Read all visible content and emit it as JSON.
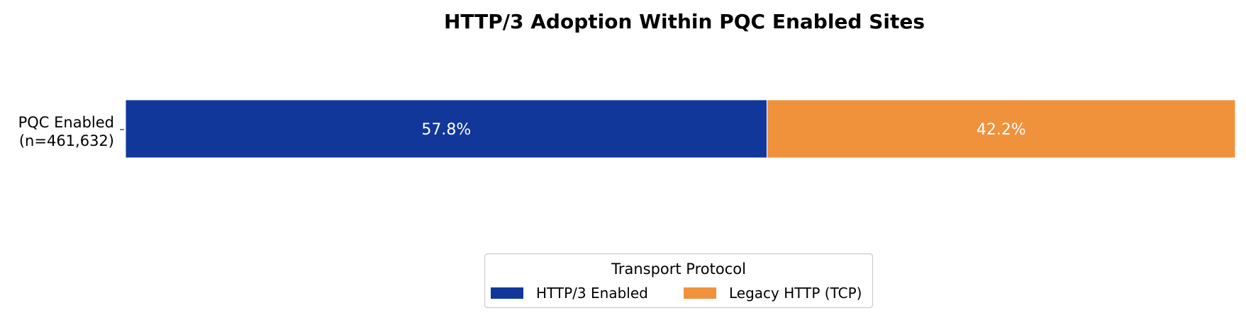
{
  "chart_data": {
    "type": "bar",
    "orientation": "horizontal",
    "stacked": true,
    "normalized_percent": true,
    "title": "HTTP/3 Adoption Within PQC Enabled Sites",
    "categories": [
      {
        "label_line1": "PQC Enabled",
        "label_line2": "(n=461,632)"
      }
    ],
    "series": [
      {
        "name": "HTTP/3 Enabled",
        "values": [
          57.8
        ],
        "labels": [
          "57.8%"
        ],
        "color": "#12379B",
        "label_color": "#ffffff"
      },
      {
        "name": "Legacy HTTP (TCP)",
        "values": [
          42.2
        ],
        "labels": [
          "42.2%"
        ],
        "color": "#F0923C",
        "label_color": "#ffffff"
      }
    ],
    "xlim": [
      0,
      100
    ],
    "grid": false,
    "x_axis_visible": false,
    "legend": {
      "title": "Transport Protocol",
      "placement": "bottom-center"
    }
  }
}
